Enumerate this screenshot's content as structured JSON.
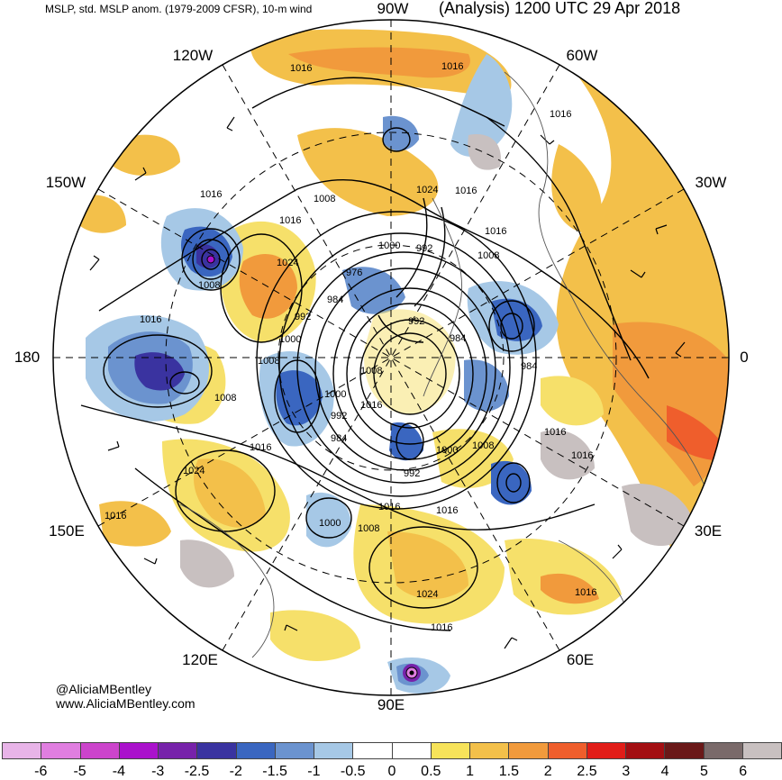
{
  "header": {
    "left": "MSLP, std. MSLP anom. (1979-2009 CFSR), 10-m wind",
    "right": "(Analysis) 1200 UTC 29 Apr 2018"
  },
  "longitude_labels": {
    "w90": "90W",
    "w60": "60W",
    "w30": "30W",
    "e0": "0",
    "e30": "30E",
    "e60": "60E",
    "e90": "90E",
    "e120": "120E",
    "e150": "150E",
    "d180": "180",
    "w150": "150W",
    "w120": "120W"
  },
  "contour_labels": [
    "1016",
    "1016",
    "1016",
    "1016",
    "1008",
    "1016",
    "1024",
    "1016",
    "1016",
    "1008",
    "1024",
    "1008",
    "976",
    "1000",
    "992",
    "984",
    "992",
    "992",
    "984",
    "1016",
    "1000",
    "1008",
    "1008",
    "984",
    "1008",
    "1000",
    "992",
    "1016",
    "1016",
    "984",
    "1000",
    "1008",
    "1016",
    "1024",
    "992",
    "1016",
    "1016",
    "1000",
    "1008",
    "1016",
    "1016",
    "1024",
    "1016",
    "1016"
  ],
  "credits": {
    "handle": "@AliciaMBentley",
    "site": "www.AliciaMBentley.com"
  },
  "colorbar": {
    "colors": [
      "#e8b4e8",
      "#e07ee0",
      "#cc44cc",
      "#aa11cc",
      "#7722aa",
      "#3a33a0",
      "#3a66c0",
      "#6b93cf",
      "#a6c8e6",
      "#ffffff",
      "#ffffff",
      "#f7e35a",
      "#f3c04a",
      "#f19a3c",
      "#ef5e2c",
      "#e11d18",
      "#a30e12",
      "#6a1818",
      "#7a6a6a",
      "#c8c0c0"
    ],
    "ticks": [
      "-6",
      "-5",
      "-4",
      "-3",
      "-2.5",
      "-2",
      "-1.5",
      "-1",
      "-0.5",
      "0",
      "0.5",
      "1",
      "1.5",
      "2",
      "2.5",
      "3",
      "4",
      "5",
      "6"
    ]
  }
}
